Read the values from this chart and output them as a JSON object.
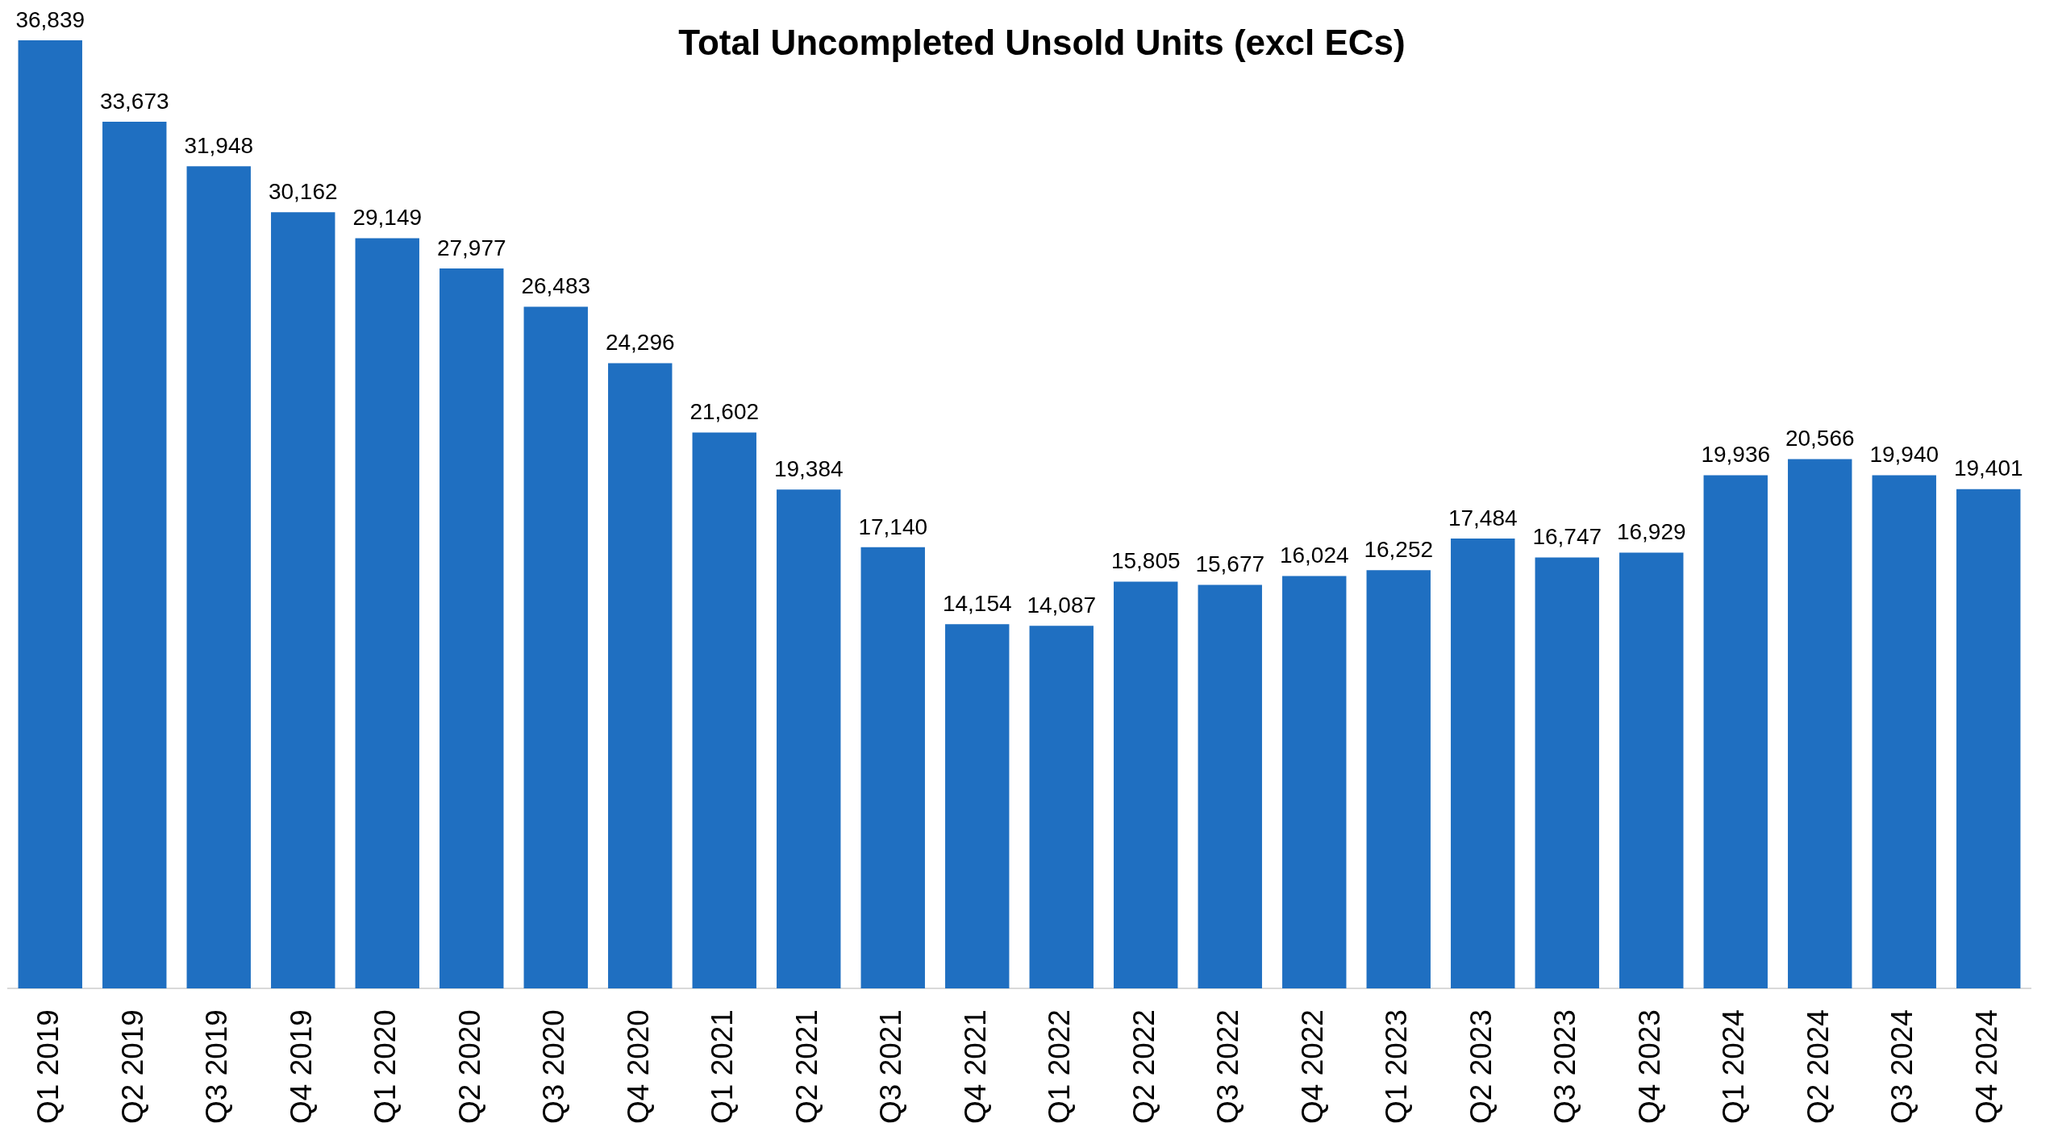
{
  "chart_data": {
    "type": "bar",
    "title": "Total Uncompleted Unsold Units (excl ECs)",
    "categories": [
      "Q1 2019",
      "Q2 2019",
      "Q3 2019",
      "Q4 2019",
      "Q1 2020",
      "Q2 2020",
      "Q3 2020",
      "Q4 2020",
      "Q1 2021",
      "Q2 2021",
      "Q3 2021",
      "Q4 2021",
      "Q1 2022",
      "Q2 2022",
      "Q3 2022",
      "Q4 2022",
      "Q1 2023",
      "Q2 2023",
      "Q3 2023",
      "Q4 2023",
      "Q1 2024",
      "Q2 2024",
      "Q3 2024",
      "Q4 2024"
    ],
    "values": [
      36839,
      33673,
      31948,
      30162,
      29149,
      27977,
      26483,
      24296,
      21602,
      19384,
      17140,
      14154,
      14087,
      15805,
      15677,
      16024,
      16252,
      17484,
      16747,
      16929,
      19936,
      20566,
      19940,
      19401
    ],
    "value_labels": [
      "36,839",
      "33,673",
      "31,948",
      "30,162",
      "29,149",
      "27,977",
      "26,483",
      "24,296",
      "21,602",
      "19,384",
      "17,140",
      "14,154",
      "14,087",
      "15,805",
      "15,677",
      "16,024",
      "16,252",
      "17,484",
      "16,747",
      "16,929",
      "19,936",
      "20,566",
      "19,940",
      "19,401"
    ],
    "color": "#1f6fc1",
    "tick_labels": "x"
  }
}
